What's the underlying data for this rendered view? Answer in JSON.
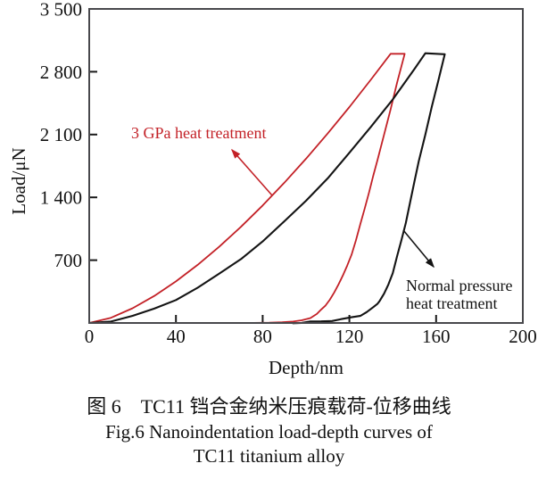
{
  "figure": {
    "axis": {
      "ylabel": "Load/μN",
      "xlabel": "Depth/nm",
      "yticks": [
        "3 500",
        "2 800",
        "2 100",
        "1 400",
        "700"
      ],
      "ytick_values": [
        3500,
        2800,
        2100,
        1400,
        700
      ],
      "xticks": [
        "0",
        "40",
        "80",
        "120",
        "160",
        "200"
      ],
      "xtick_values": [
        0,
        40,
        80,
        120,
        160,
        200
      ],
      "xlim": [
        0,
        200
      ],
      "ylim": [
        0,
        3500
      ]
    },
    "annotations": {
      "red_label": "3 GPa heat treatment",
      "black_label_line1": "Normal pressure",
      "black_label_line2": "heat treatment"
    },
    "colors": {
      "red_curve": "#c32127",
      "black_curve": "#141414",
      "frame": "#48484c",
      "tick": "#1a1a1a"
    },
    "caption": {
      "zh": "图 6　TC11 铛合金纳米压痕载荷-位移曲线",
      "en_line1": "Fig.6 Nanoindentation load-depth curves of",
      "en_line2": "TC11 titanium alloy"
    }
  },
  "chart_data": {
    "type": "line",
    "title": "Fig.6 Nanoindentation load-depth curves of TC11 titanium alloy",
    "title_zh": "图 6 TC11 铛合金纳米压痕载荷-位移曲线",
    "xlabel": "Depth/nm",
    "ylabel": "Load/μN",
    "xlim": [
      0,
      200
    ],
    "ylim": [
      0,
      3500
    ],
    "grid": false,
    "legend": "none (curves labeled by arrows)",
    "series": [
      {
        "key": "red",
        "name": "3 GPa heat treatment",
        "peak_load_uN": 3000,
        "max_depth_nm": 145.5,
        "loading": [
          [
            0,
            0
          ],
          [
            10,
            58
          ],
          [
            20,
            164
          ],
          [
            30,
            301
          ],
          [
            40,
            463
          ],
          [
            50,
            647
          ],
          [
            60,
            851
          ],
          [
            70,
            1072
          ],
          [
            80,
            1310
          ],
          [
            90,
            1563
          ],
          [
            100,
            1831
          ],
          [
            110,
            2112
          ],
          [
            120,
            2406
          ],
          [
            130,
            2714
          ],
          [
            139,
            3000
          ],
          [
            145.5,
            3000
          ]
        ],
        "unloading": [
          [
            145.5,
            3000
          ],
          [
            142,
            2680
          ],
          [
            139,
            2380
          ],
          [
            136,
            2100
          ],
          [
            133,
            1820
          ],
          [
            131,
            1640
          ],
          [
            129,
            1450
          ],
          [
            127,
            1270
          ],
          [
            125,
            1100
          ],
          [
            123,
            920
          ],
          [
            121,
            760
          ],
          [
            119,
            640
          ],
          [
            117,
            530
          ],
          [
            115,
            430
          ],
          [
            113,
            340
          ],
          [
            111,
            260
          ],
          [
            109,
            195
          ],
          [
            107,
            150
          ],
          [
            105,
            100
          ],
          [
            102,
            55
          ],
          [
            98,
            30
          ],
          [
            94,
            16
          ],
          [
            89,
            8
          ],
          [
            83,
            3
          ],
          [
            76,
            1
          ]
        ]
      },
      {
        "key": "black",
        "name": "Normal pressure heat treatment",
        "peak_load_uN": 3000,
        "max_depth_nm": 164,
        "loading": [
          [
            0,
            0
          ],
          [
            10,
            22
          ],
          [
            20,
            75
          ],
          [
            30,
            156
          ],
          [
            40,
            262
          ],
          [
            50,
            392
          ],
          [
            60,
            544
          ],
          [
            70,
            717
          ],
          [
            80,
            912
          ],
          [
            90,
            1127
          ],
          [
            100,
            1363
          ],
          [
            110,
            1618
          ],
          [
            120,
            1892
          ],
          [
            130,
            2186
          ],
          [
            140,
            2498
          ],
          [
            150,
            2828
          ],
          [
            155,
            3000
          ],
          [
            164,
            3000
          ]
        ],
        "unloading": [
          [
            164,
            3000
          ],
          [
            161,
            2700
          ],
          [
            158,
            2400
          ],
          [
            155,
            2100
          ],
          [
            152,
            1810
          ],
          [
            150,
            1570
          ],
          [
            148,
            1340
          ],
          [
            146,
            1120
          ],
          [
            144,
            920
          ],
          [
            142,
            740
          ],
          [
            140,
            560
          ],
          [
            138,
            430
          ],
          [
            136,
            320
          ],
          [
            134,
            250
          ],
          [
            133,
            220
          ],
          [
            131,
            170
          ],
          [
            128,
            120
          ],
          [
            125,
            85
          ],
          [
            121,
            60
          ],
          [
            117,
            42
          ],
          [
            112,
            28
          ],
          [
            107,
            18
          ],
          [
            102,
            10
          ],
          [
            98,
            5
          ],
          [
            94,
            1
          ]
        ]
      }
    ]
  }
}
